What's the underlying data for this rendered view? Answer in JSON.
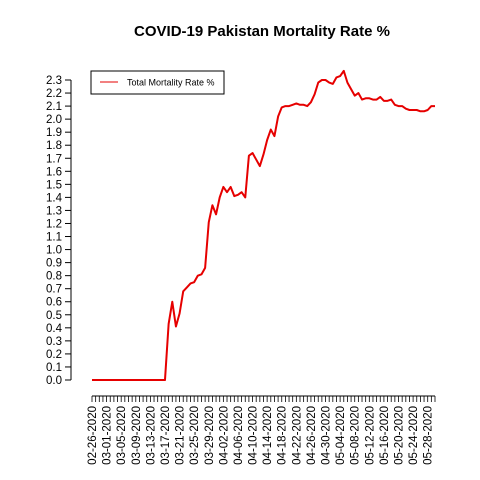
{
  "chart_data": {
    "type": "line",
    "title": "COVID-19 Pakistan Mortality Rate %",
    "xlabel": "",
    "ylabel": "",
    "legend_position": "top-left",
    "grid": false,
    "ylim": [
      0,
      2.3
    ],
    "y_ticks": [
      "0.0",
      "0.1",
      "0.2",
      "0.3",
      "0.4",
      "0.5",
      "0.6",
      "0.7",
      "0.8",
      "0.9",
      "1.0",
      "1.1",
      "1.2",
      "1.3",
      "1.4",
      "1.5",
      "1.6",
      "1.7",
      "1.8",
      "1.9",
      "2.0",
      "2.1",
      "2.2",
      "2.3"
    ],
    "x_tick_labels": [
      "02-26-2020",
      "03-01-2020",
      "03-05-2020",
      "03-09-2020",
      "03-13-2020",
      "03-17-2020",
      "03-21-2020",
      "03-25-2020",
      "03-29-2020",
      "04-02-2020",
      "04-06-2020",
      "04-10-2020",
      "04-14-2020",
      "04-18-2020",
      "04-22-2020",
      "04-26-2020",
      "04-30-2020",
      "05-04-2020",
      "05-08-2020",
      "05-12-2020",
      "05-16-2020",
      "05-20-2020",
      "05-24-2020",
      "05-28-2020"
    ],
    "x": [
      "02-26-2020",
      "02-27-2020",
      "02-28-2020",
      "02-29-2020",
      "03-01-2020",
      "03-02-2020",
      "03-03-2020",
      "03-04-2020",
      "03-05-2020",
      "03-06-2020",
      "03-07-2020",
      "03-08-2020",
      "03-09-2020",
      "03-10-2020",
      "03-11-2020",
      "03-12-2020",
      "03-13-2020",
      "03-14-2020",
      "03-15-2020",
      "03-16-2020",
      "03-17-2020",
      "03-18-2020",
      "03-19-2020",
      "03-20-2020",
      "03-21-2020",
      "03-22-2020",
      "03-23-2020",
      "03-24-2020",
      "03-25-2020",
      "03-26-2020",
      "03-27-2020",
      "03-28-2020",
      "03-29-2020",
      "03-30-2020",
      "03-31-2020",
      "04-01-2020",
      "04-02-2020",
      "04-03-2020",
      "04-04-2020",
      "04-05-2020",
      "04-06-2020",
      "04-07-2020",
      "04-08-2020",
      "04-09-2020",
      "04-10-2020",
      "04-11-2020",
      "04-12-2020",
      "04-13-2020",
      "04-14-2020",
      "04-15-2020",
      "04-16-2020",
      "04-17-2020",
      "04-18-2020",
      "04-19-2020",
      "04-20-2020",
      "04-21-2020",
      "04-22-2020",
      "04-23-2020",
      "04-24-2020",
      "04-25-2020",
      "04-26-2020",
      "04-27-2020",
      "04-28-2020",
      "04-29-2020",
      "04-30-2020",
      "05-01-2020",
      "05-02-2020",
      "05-03-2020",
      "05-04-2020",
      "05-05-2020",
      "05-06-2020",
      "05-07-2020",
      "05-08-2020",
      "05-09-2020",
      "05-10-2020",
      "05-11-2020",
      "05-12-2020",
      "05-13-2020",
      "05-14-2020",
      "05-15-2020",
      "05-16-2020",
      "05-17-2020",
      "05-18-2020",
      "05-19-2020",
      "05-20-2020",
      "05-21-2020",
      "05-22-2020",
      "05-23-2020",
      "05-24-2020",
      "05-25-2020",
      "05-26-2020",
      "05-27-2020",
      "05-28-2020",
      "05-29-2020",
      "05-30-2020"
    ],
    "series": [
      {
        "name": "Total Mortality Rate %",
        "color": "#e60000",
        "values": [
          0,
          0,
          0,
          0,
          0,
          0,
          0,
          0,
          0,
          0,
          0,
          0,
          0,
          0,
          0,
          0,
          0,
          0,
          0,
          0,
          0,
          0.43,
          0.6,
          0.41,
          0.51,
          0.68,
          0.71,
          0.74,
          0.75,
          0.8,
          0.81,
          0.86,
          1.21,
          1.34,
          1.27,
          1.4,
          1.48,
          1.44,
          1.48,
          1.41,
          1.42,
          1.44,
          1.4,
          1.72,
          1.74,
          1.69,
          1.64,
          1.73,
          1.84,
          1.92,
          1.87,
          2.02,
          2.09,
          2.1,
          2.1,
          2.11,
          2.12,
          2.11,
          2.11,
          2.1,
          2.13,
          2.19,
          2.28,
          2.3,
          2.3,
          2.28,
          2.27,
          2.32,
          2.33,
          2.37,
          2.28,
          2.23,
          2.18,
          2.2,
          2.15,
          2.16,
          2.16,
          2.15,
          2.15,
          2.17,
          2.14,
          2.14,
          2.15,
          2.11,
          2.1,
          2.1,
          2.08,
          2.07,
          2.07,
          2.07,
          2.06,
          2.06,
          2.07,
          2.1,
          2.1
        ]
      }
    ]
  }
}
